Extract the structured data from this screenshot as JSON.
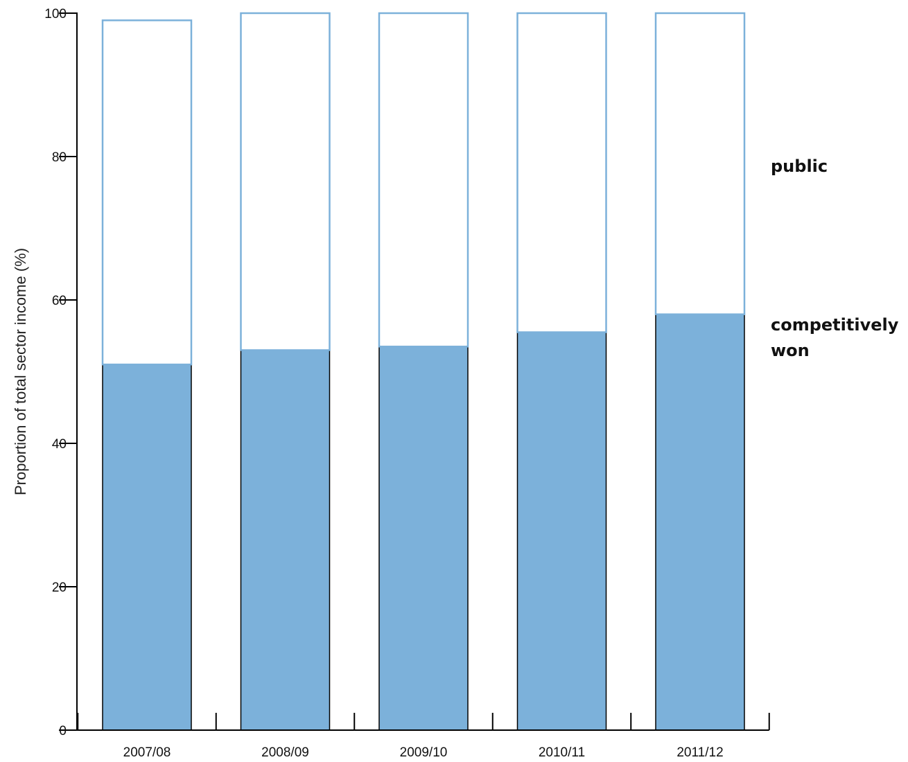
{
  "chart_data": {
    "type": "bar",
    "stacked": true,
    "categories": [
      "2007/08",
      "2008/09",
      "2009/10",
      "2010/11",
      "2011/12"
    ],
    "series": [
      {
        "name": "competitively won",
        "label_lines": [
          "competitively",
          "won"
        ],
        "values": [
          51,
          53,
          53.5,
          55.5,
          58
        ],
        "color": "#7cb1da",
        "edge_color": "#000000"
      },
      {
        "name": "public",
        "label_lines": [
          "public"
        ],
        "values": [
          48,
          47,
          46.5,
          44.5,
          42
        ],
        "color": "#ffffff",
        "edge_color": "#7cb1da"
      }
    ],
    "title": "",
    "xlabel": "",
    "ylabel": "Proportion of total sector income (%)",
    "ylim": [
      0,
      100
    ],
    "yticks": [
      0,
      20,
      40,
      60,
      80,
      100
    ],
    "grid": false,
    "legend": "right"
  }
}
